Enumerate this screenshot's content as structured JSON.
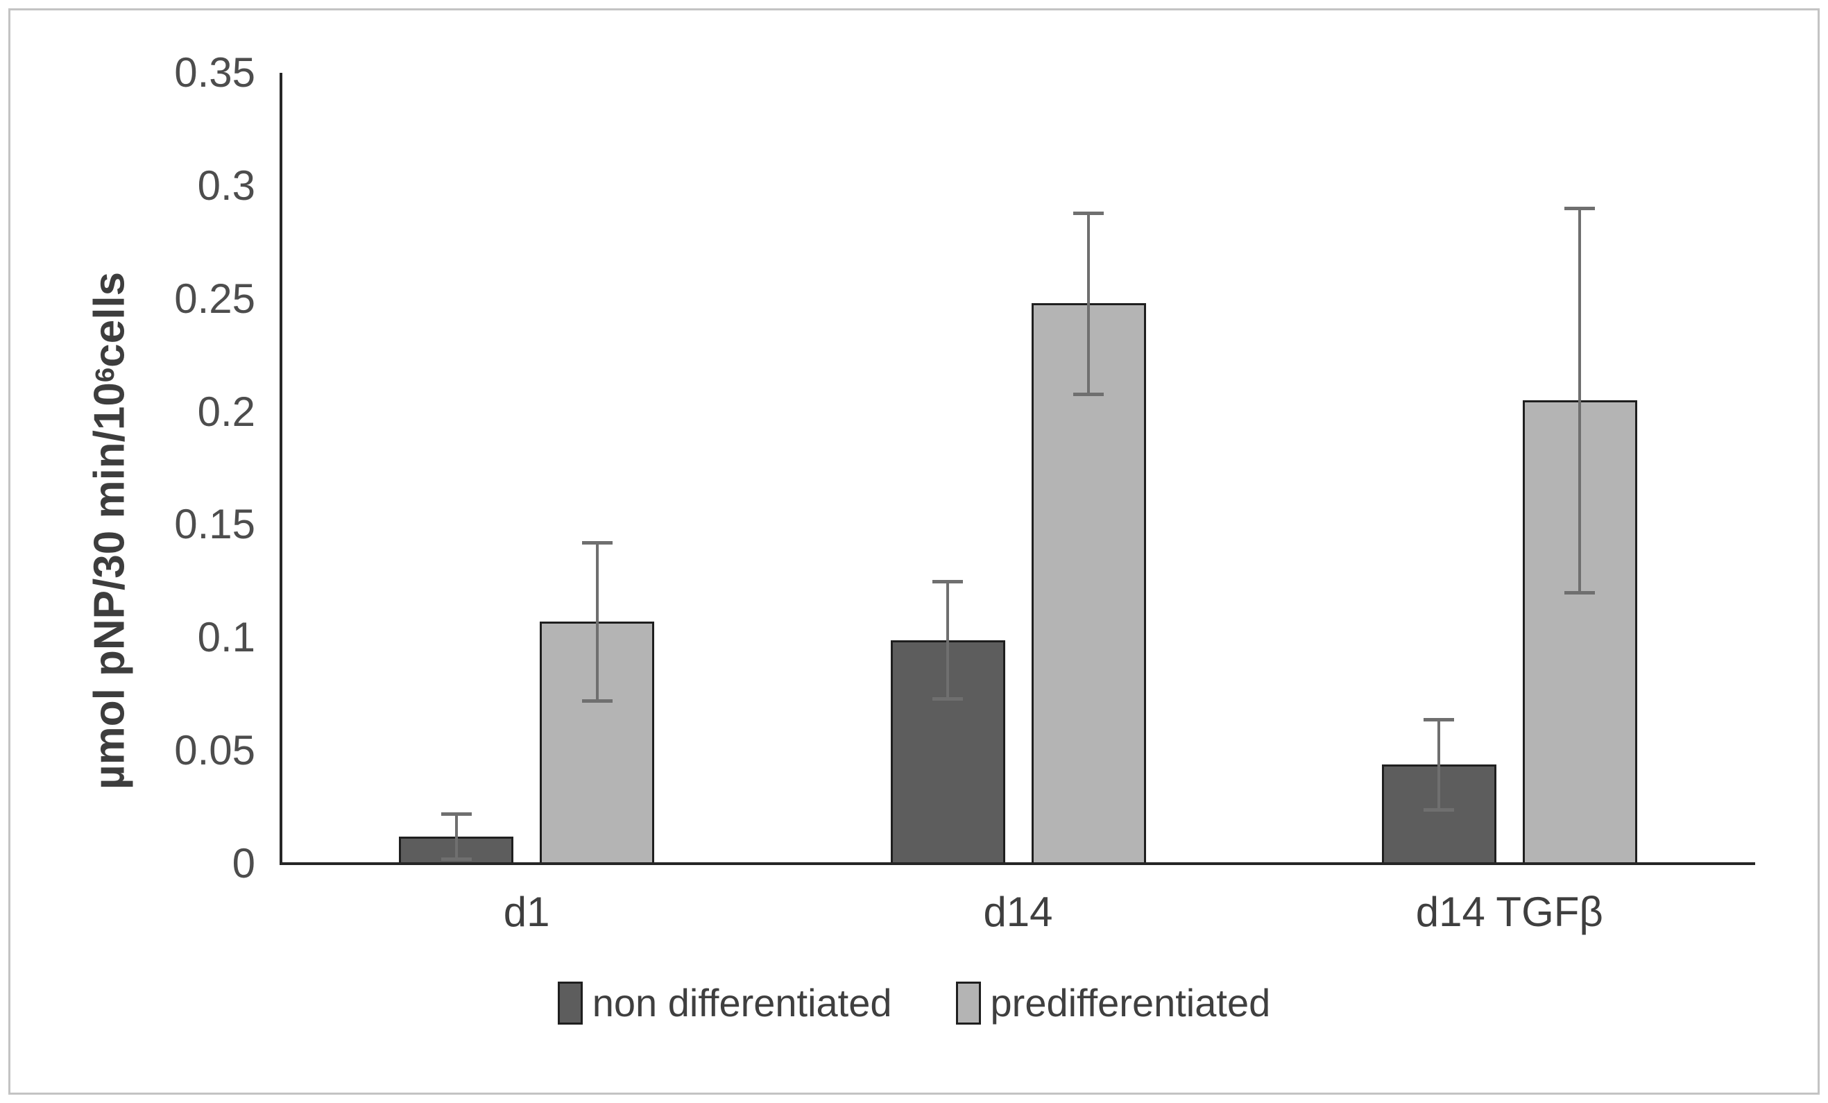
{
  "figure": {
    "frame_color": "#c3c3c3",
    "background": "#ffffff"
  },
  "chart_data": {
    "type": "bar",
    "title": "",
    "categories": [
      "d1",
      "d14",
      "d14 TGFβ"
    ],
    "series": [
      {
        "name": "non differentiated",
        "color": "#5d5d5d",
        "values": [
          0.012,
          0.099,
          0.044
        ],
        "errors": [
          0.01,
          0.026,
          0.02
        ]
      },
      {
        "name": "predifferentiated",
        "color": "#b4b4b4",
        "values": [
          0.107,
          0.248,
          0.205
        ],
        "errors": [
          0.035,
          0.04,
          0.085
        ]
      }
    ],
    "xlabel": "",
    "ylabel": {
      "prefix": "µmol pNP/30 min/10",
      "superscript": "6",
      "suffix": "cells"
    },
    "ylim": [
      0,
      0.35
    ],
    "ytick_step": 0.05,
    "yticks": [
      "0",
      "0.05",
      "0.1",
      "0.15",
      "0.2",
      "0.25",
      "0.3",
      "0.35"
    ],
    "grid": false,
    "legend_position": "bottom",
    "colors": {
      "axis": "#262626",
      "bar_border": "#1f1f1f",
      "error_bar": "#6f6f6f",
      "tick_text": "#4d4d4d",
      "category_text": "#3f3f3f",
      "legend_text": "#3f3f3f",
      "ylabel_text": "#3d3d3d"
    }
  }
}
